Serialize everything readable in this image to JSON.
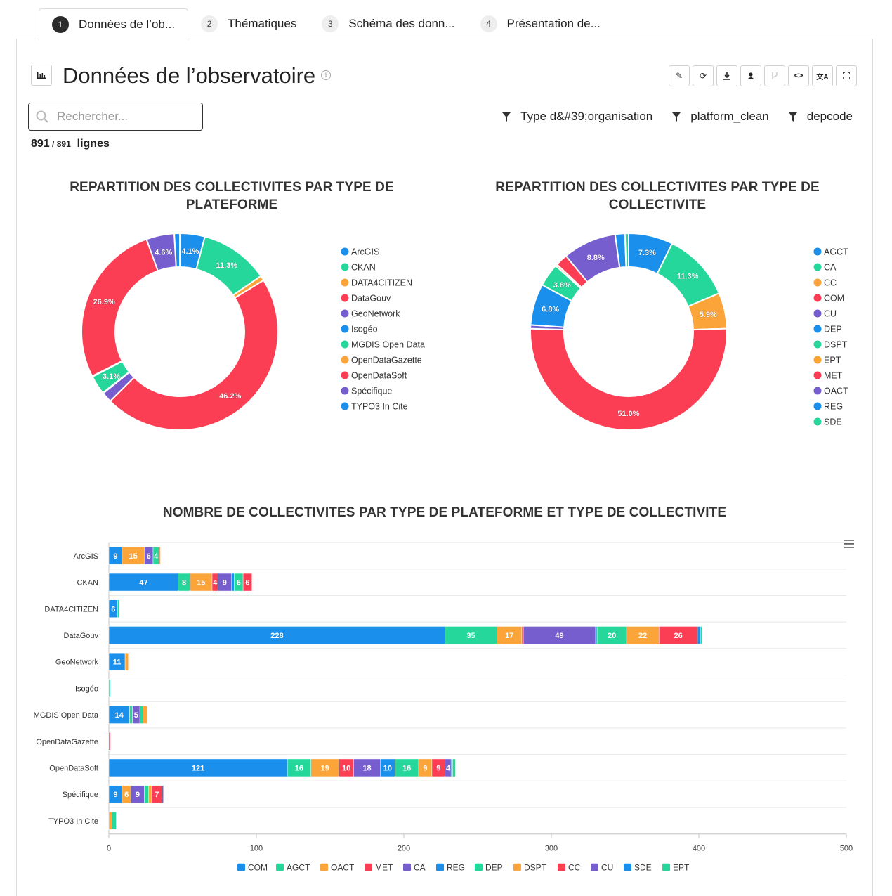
{
  "tabs": [
    {
      "num": "1",
      "label": "Données de l’ob..."
    },
    {
      "num": "2",
      "label": "Thématiques"
    },
    {
      "num": "3",
      "label": "Schéma des donn..."
    },
    {
      "num": "4",
      "label": "Présentation de..."
    }
  ],
  "page": {
    "title": "Données de l’observatoire"
  },
  "search": {
    "placeholder": "Rechercher..."
  },
  "filters": [
    "Type d&#39;organisation",
    "platform_clean",
    "depcode"
  ],
  "count": {
    "shown": "891",
    "total": "891",
    "unit": "lignes"
  },
  "colors": {
    "blue": "#1a8fec",
    "green": "#25d79a",
    "orange": "#fba43a",
    "red": "#fc3e55",
    "purple": "#775ecf"
  },
  "chart_data": [
    {
      "type": "pie",
      "title": "REPARTITION DES COLLECTIVITES PAR TYPE DE PLATEFORME",
      "categories": [
        "ArcGIS",
        "CKAN",
        "DATA4CITIZEN",
        "DataGouv",
        "GeoNetwork",
        "Isogéo",
        "MGDIS Open Data",
        "OpenDataGazette",
        "OpenDataSoft",
        "Spécifique",
        "TYPO3 In Cite"
      ],
      "values": [
        4.1,
        11.3,
        0.8,
        46.2,
        1.7,
        0.1,
        3.1,
        0.1,
        26.9,
        4.6,
        0.9
      ],
      "labels": [
        "4.1%",
        "11.3%",
        "",
        "46.2%",
        "",
        "",
        "3.1%",
        "",
        "26.9%",
        "4.6%",
        ""
      ],
      "legend": "right"
    },
    {
      "type": "pie",
      "title": "REPARTITION DES COLLECTIVITES PAR TYPE DE COLLECTIVITE",
      "categories": [
        "AGCT",
        "CA",
        "CC",
        "COM",
        "CU",
        "DEP",
        "DSPT",
        "EPT",
        "MET",
        "OACT",
        "REG",
        "SDE"
      ],
      "values": [
        7.3,
        11.3,
        5.9,
        51.0,
        0.6,
        6.8,
        3.8,
        0.3,
        2.0,
        8.8,
        1.6,
        0.6
      ],
      "labels": [
        "7.3%",
        "11.3%",
        "5.9%",
        "51.0%",
        "",
        "6.8%",
        "3.8%",
        "",
        "",
        "8.8%",
        "",
        ""
      ],
      "legend": "right"
    },
    {
      "type": "bar",
      "orientation": "horizontal",
      "stacked": true,
      "title": "NOMBRE DE COLLECTIVITES PAR TYPE DE PLATEFORME ET TYPE DE COLLECTIVITE",
      "categories": [
        "ArcGIS",
        "CKAN",
        "DATA4CITIZEN",
        "DataGouv",
        "GeoNetwork",
        "Isogéo",
        "MGDIS Open Data",
        "OpenDataGazette",
        "OpenDataSoft",
        "Spécifique",
        "TYPO3 In Cite"
      ],
      "xlim": [
        0,
        500
      ],
      "xticks": [
        "0",
        "100",
        "200",
        "300",
        "400",
        "500"
      ],
      "legend": "bottom",
      "series": [
        {
          "name": "COM",
          "values": [
            9,
            47,
            6,
            228,
            11,
            0,
            14,
            0,
            121,
            9,
            0
          ]
        },
        {
          "name": "AGCT",
          "values": [
            0,
            8,
            0,
            35,
            0,
            1,
            2,
            0,
            16,
            0,
            0
          ]
        },
        {
          "name": "OACT",
          "values": [
            15,
            15,
            0,
            17,
            2,
            0,
            0,
            0,
            19,
            6,
            2
          ]
        },
        {
          "name": "MET",
          "values": [
            0,
            4,
            0,
            1,
            0,
            0,
            0,
            1,
            10,
            0,
            0
          ]
        },
        {
          "name": "CA",
          "values": [
            6,
            9,
            0,
            49,
            0,
            0,
            5,
            0,
            18,
            9,
            0
          ]
        },
        {
          "name": "REG",
          "values": [
            0,
            2,
            0,
            1,
            0,
            0,
            0,
            0,
            10,
            0,
            0
          ]
        },
        {
          "name": "DEP",
          "values": [
            4,
            6,
            1,
            20,
            0,
            0,
            2,
            0,
            16,
            3,
            3
          ]
        },
        {
          "name": "DSPT",
          "values": [
            1,
            0,
            0,
            22,
            1,
            0,
            3,
            0,
            9,
            2,
            0
          ]
        },
        {
          "name": "CC",
          "values": [
            0,
            6,
            0,
            26,
            0,
            0,
            0,
            0,
            9,
            7,
            0
          ]
        },
        {
          "name": "CU",
          "values": [
            0,
            0,
            0,
            0,
            0,
            0,
            0,
            0,
            4,
            1,
            0
          ]
        },
        {
          "name": "SDE",
          "values": [
            0,
            0,
            0,
            2,
            0,
            0,
            0,
            0,
            1,
            0,
            0
          ]
        },
        {
          "name": "EPT",
          "values": [
            0,
            0,
            0,
            1,
            0,
            0,
            0,
            0,
            2,
            0,
            0
          ]
        }
      ]
    }
  ]
}
